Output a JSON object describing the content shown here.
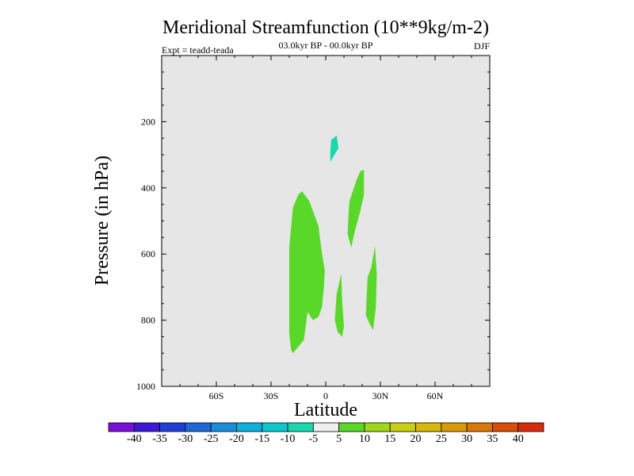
{
  "chart_data": {
    "type": "contour",
    "title": "Meridional Streamfunction (10**9kg/m-2)",
    "subtitle": "03.0kyr BP - 00.0kyr BP",
    "expt_label": "Expt = teadd-teada",
    "season": "DJF",
    "xlabel": "Latitude",
    "ylabel": "Pressure (in hPa)",
    "x_range": [
      -90,
      90
    ],
    "y_range": [
      1000,
      0
    ],
    "y_reversed": true,
    "x_ticks": [
      {
        "value": -60,
        "label": "60S"
      },
      {
        "value": -30,
        "label": "30S"
      },
      {
        "value": 0,
        "label": "0"
      },
      {
        "value": 30,
        "label": "30N"
      },
      {
        "value": 60,
        "label": "60N"
      }
    ],
    "y_ticks": [
      {
        "value": 200,
        "label": "200"
      },
      {
        "value": 400,
        "label": "400"
      },
      {
        "value": 600,
        "label": "600"
      },
      {
        "value": 800,
        "label": "800"
      },
      {
        "value": 1000,
        "label": "1000"
      }
    ],
    "background_color": "#e6e6e6",
    "colorbar": {
      "levels": [
        "-40",
        "-35",
        "-30",
        "-25",
        "-20",
        "-15",
        "-10",
        "-5",
        "5",
        "10",
        "15",
        "20",
        "25",
        "30",
        "35",
        "40"
      ],
      "colors": [
        "#7a10d8",
        "#3d18d8",
        "#1f3ed8",
        "#1e68d8",
        "#1690dc",
        "#0cb0dc",
        "#0ac8d0",
        "#18d8b0",
        "#f0f0f0",
        "#5ad82a",
        "#a0d818",
        "#c8d010",
        "#d8b808",
        "#d89a08",
        "#d87808",
        "#d84e08",
        "#d82c0c"
      ]
    },
    "regions": [
      {
        "name": "positive-5-10-region-sh",
        "class": "5 to 10",
        "color": "#5ad82a",
        "points": [
          [
            -18,
            460
          ],
          [
            -15,
            420
          ],
          [
            -13,
            410
          ],
          [
            -9,
            440
          ],
          [
            -4,
            515
          ],
          [
            -2,
            600
          ],
          [
            -0.5,
            650
          ],
          [
            -1,
            700
          ],
          [
            -2,
            760
          ],
          [
            -4,
            790
          ],
          [
            -7,
            800
          ],
          [
            -10,
            775
          ],
          [
            -11,
            820
          ],
          [
            -12,
            860
          ],
          [
            -15,
            880
          ],
          [
            -18,
            900
          ],
          [
            -19,
            890
          ],
          [
            -20,
            840
          ],
          [
            -20,
            700
          ],
          [
            -20,
            580
          ]
        ]
      },
      {
        "name": "negative-10-5-region",
        "class": "-10 to -5",
        "color": "#18d8b0",
        "points": [
          [
            3,
            255
          ],
          [
            6,
            242
          ],
          [
            7,
            280
          ],
          [
            5,
            298
          ],
          [
            2.5,
            322
          ],
          [
            2.5,
            290
          ]
        ]
      },
      {
        "name": "positive-5-10-region-upper-nh",
        "class": "5 to 10",
        "color": "#5ad82a",
        "points": [
          [
            13,
            440
          ],
          [
            17,
            375
          ],
          [
            19,
            350
          ],
          [
            21,
            345
          ],
          [
            21,
            420
          ],
          [
            19,
            470
          ],
          [
            16,
            530
          ],
          [
            14,
            580
          ],
          [
            12,
            540
          ],
          [
            12.5,
            480
          ]
        ]
      },
      {
        "name": "positive-5-10-region-lower-nh",
        "class": "5 to 10",
        "color": "#5ad82a",
        "points": [
          [
            6,
            720
          ],
          [
            8.5,
            660
          ],
          [
            9,
            740
          ],
          [
            10,
            820
          ],
          [
            9,
            850
          ],
          [
            6.5,
            835
          ],
          [
            5,
            800
          ]
        ]
      },
      {
        "name": "positive-5-10-region-nh-column",
        "class": "5 to 10",
        "color": "#5ad82a",
        "points": [
          [
            23,
            670
          ],
          [
            25,
            640
          ],
          [
            27,
            575
          ],
          [
            28,
            660
          ],
          [
            27.5,
            760
          ],
          [
            26,
            830
          ],
          [
            24,
            810
          ],
          [
            22,
            785
          ],
          [
            22.5,
            720
          ]
        ]
      }
    ]
  }
}
